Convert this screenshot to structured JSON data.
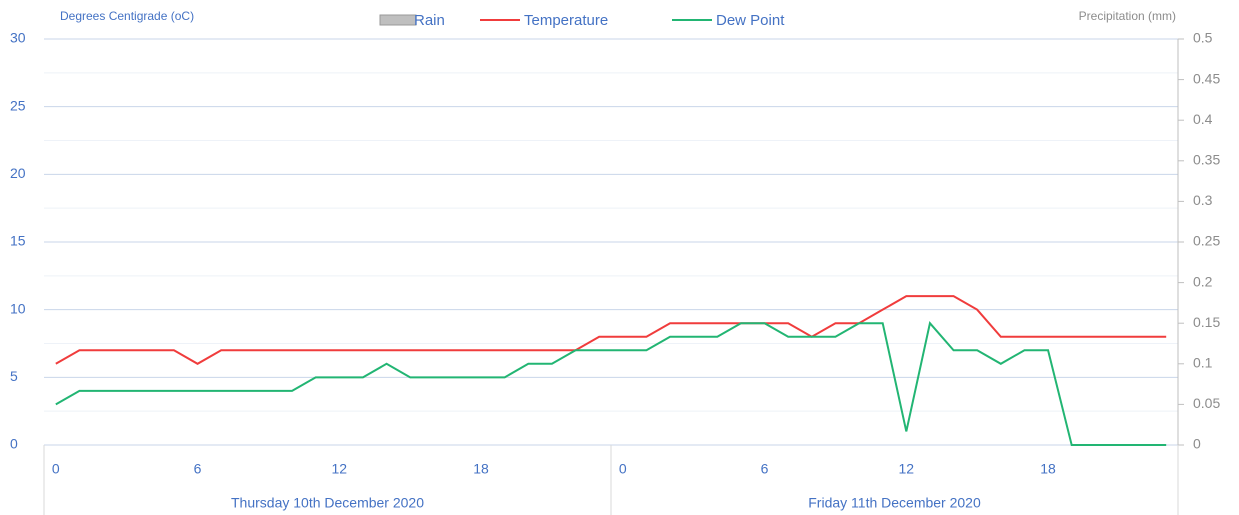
{
  "chart_data": {
    "type": "line",
    "y_axis_label": "Degrees Centigrade (oC)",
    "y2_axis_label": "Precipitation (mm)",
    "categories": [
      "0",
      null,
      null,
      null,
      null,
      null,
      "6",
      null,
      null,
      null,
      null,
      null,
      "12",
      null,
      null,
      null,
      null,
      null,
      "18",
      null,
      null,
      null,
      null,
      null,
      "0",
      null,
      null,
      null,
      null,
      null,
      "6",
      null,
      null,
      null,
      null,
      null,
      "12",
      null,
      null,
      null,
      null,
      null,
      "18",
      null,
      null,
      null,
      null,
      null
    ],
    "groups": [
      {
        "label": "Thursday 10th December 2020"
      },
      {
        "label": "Friday 11th December 2020"
      }
    ],
    "series": [
      {
        "name": "Rain",
        "type": "bar",
        "axis": "y2",
        "color": "#bfbfbf",
        "values": [
          0,
          0,
          0,
          0,
          0,
          0,
          0,
          0,
          0,
          0,
          0,
          0,
          0,
          0,
          0,
          0,
          0,
          0,
          0,
          0,
          0,
          0,
          0,
          0,
          0,
          0,
          0,
          0,
          0,
          0,
          0,
          0,
          0,
          0,
          0,
          0,
          0,
          0,
          0,
          0,
          0,
          0,
          0,
          0,
          0,
          0,
          0,
          0
        ]
      },
      {
        "name": "Temperature",
        "type": "line",
        "color": "#f03c3c",
        "values": [
          6,
          7,
          7,
          7,
          7,
          7,
          6,
          7,
          7,
          7,
          7,
          7,
          7,
          7,
          7,
          7,
          7,
          7,
          7,
          7,
          7,
          7,
          7,
          8,
          8,
          8,
          9,
          9,
          9,
          9,
          9,
          9,
          8,
          9,
          9,
          10,
          11,
          11,
          11,
          10,
          8,
          8,
          8,
          8,
          8,
          8,
          8,
          8
        ]
      },
      {
        "name": "Dew Point",
        "type": "line",
        "color": "#22b573",
        "values": [
          3,
          4,
          4,
          4,
          4,
          4,
          4,
          4,
          4,
          4,
          4,
          5,
          5,
          5,
          6,
          5,
          5,
          5,
          5,
          5,
          6,
          6,
          7,
          7,
          7,
          7,
          8,
          8,
          8,
          9,
          9,
          8,
          8,
          8,
          9,
          9,
          1,
          9,
          7,
          7,
          6,
          7,
          7,
          0,
          0,
          0,
          0,
          0
        ]
      }
    ],
    "ylim": [
      0,
      30
    ],
    "yticks": [
      0,
      5,
      10,
      15,
      20,
      25,
      30
    ],
    "y2lim": [
      0,
      0.5
    ],
    "y2ticks": [
      0,
      0.05,
      0.1,
      0.15,
      0.2,
      0.25,
      0.3,
      0.35,
      0.4,
      0.45,
      0.5
    ],
    "grid": true
  }
}
